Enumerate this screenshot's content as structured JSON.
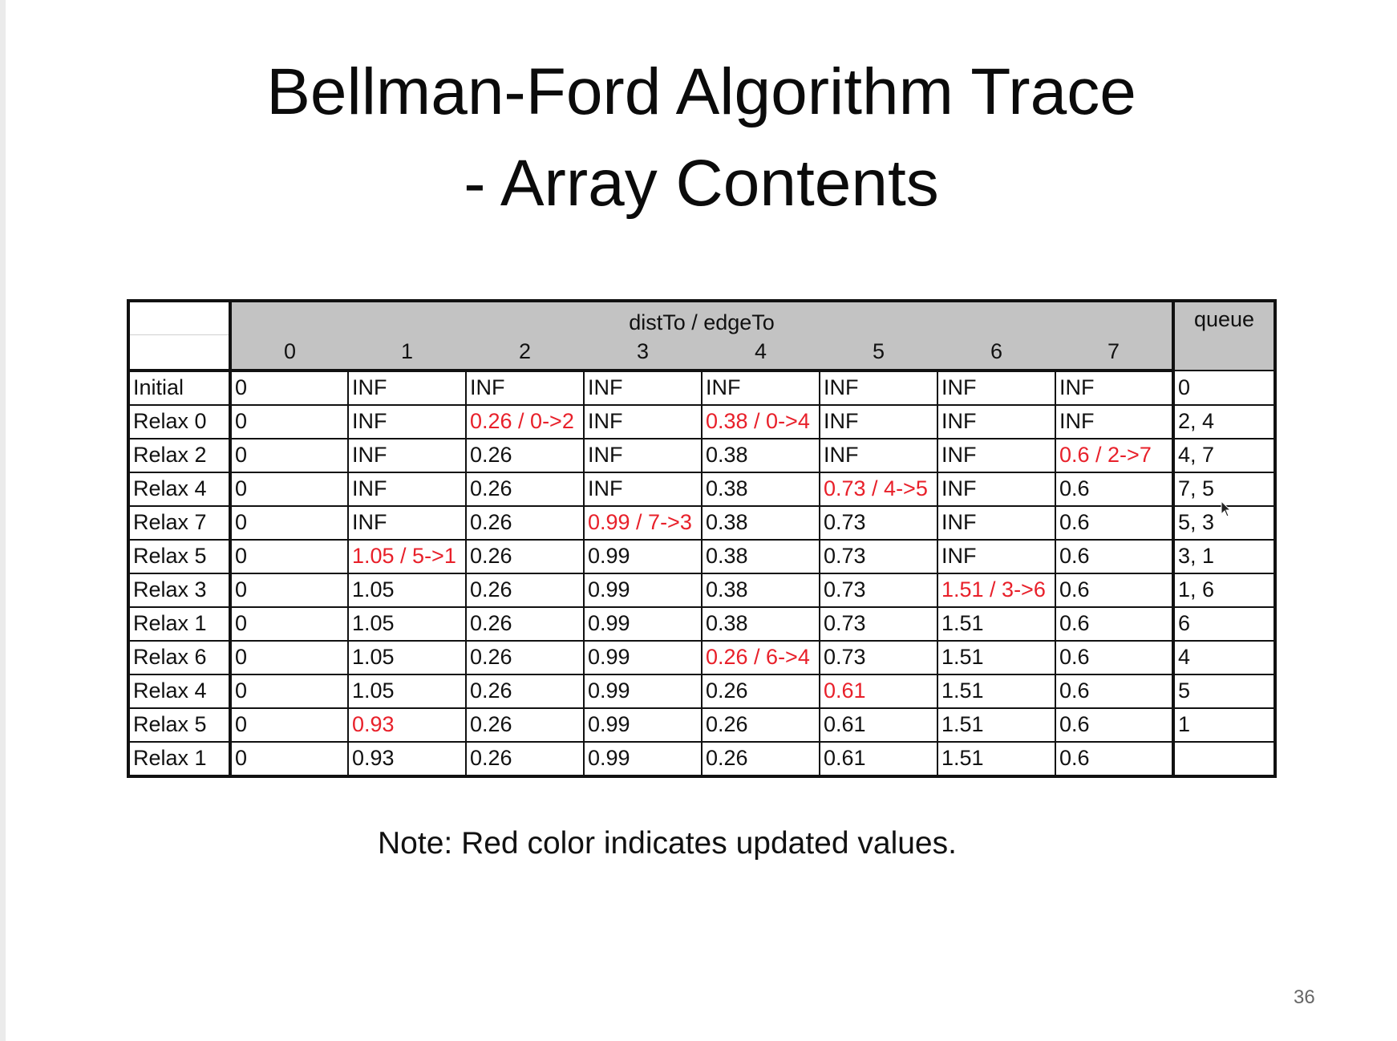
{
  "slide": {
    "title_line1": "Bellman-Ford Algorithm Trace",
    "title_line2": "- Array Contents",
    "note": "Note: Red color indicates updated values.",
    "page_number": "36",
    "highlight_color": "#e8202a"
  },
  "table": {
    "group_header": "distTo / edgeTo",
    "queue_header": "queue",
    "columns": [
      "0",
      "1",
      "2",
      "3",
      "4",
      "5",
      "6",
      "7"
    ],
    "rows": [
      {
        "label": "Initial",
        "cells": [
          {
            "v": "0"
          },
          {
            "v": "INF"
          },
          {
            "v": "INF"
          },
          {
            "v": "INF"
          },
          {
            "v": "INF"
          },
          {
            "v": "INF"
          },
          {
            "v": "INF"
          },
          {
            "v": "INF"
          }
        ],
        "queue": "0"
      },
      {
        "label": "Relax 0",
        "cells": [
          {
            "v": "0"
          },
          {
            "v": "INF"
          },
          {
            "v": "0.26 / 0->2",
            "updated": true
          },
          {
            "v": "INF"
          },
          {
            "v": "0.38 / 0->4",
            "updated": true
          },
          {
            "v": "INF"
          },
          {
            "v": "INF"
          },
          {
            "v": "INF"
          }
        ],
        "queue": "2, 4"
      },
      {
        "label": "Relax 2",
        "cells": [
          {
            "v": "0"
          },
          {
            "v": "INF"
          },
          {
            "v": "0.26"
          },
          {
            "v": "INF"
          },
          {
            "v": "0.38"
          },
          {
            "v": "INF"
          },
          {
            "v": "INF"
          },
          {
            "v": "0.6 / 2->7",
            "updated": true
          }
        ],
        "queue": "4, 7"
      },
      {
        "label": "Relax 4",
        "cells": [
          {
            "v": "0"
          },
          {
            "v": "INF"
          },
          {
            "v": "0.26"
          },
          {
            "v": "INF"
          },
          {
            "v": "0.38"
          },
          {
            "v": "0.73 / 4->5",
            "updated": true
          },
          {
            "v": "INF"
          },
          {
            "v": "0.6"
          }
        ],
        "queue": "7, 5"
      },
      {
        "label": "Relax 7",
        "cells": [
          {
            "v": "0"
          },
          {
            "v": "INF"
          },
          {
            "v": "0.26"
          },
          {
            "v": "0.99 / 7->3",
            "updated": true
          },
          {
            "v": "0.38"
          },
          {
            "v": "0.73"
          },
          {
            "v": "INF"
          },
          {
            "v": "0.6"
          }
        ],
        "queue": "5, 3"
      },
      {
        "label": "Relax 5",
        "cells": [
          {
            "v": "0"
          },
          {
            "v": "1.05 / 5->1",
            "updated": true
          },
          {
            "v": "0.26"
          },
          {
            "v": "0.99"
          },
          {
            "v": "0.38"
          },
          {
            "v": "0.73"
          },
          {
            "v": "INF"
          },
          {
            "v": "0.6"
          }
        ],
        "queue": "3, 1"
      },
      {
        "label": "Relax 3",
        "cells": [
          {
            "v": "0"
          },
          {
            "v": "1.05"
          },
          {
            "v": "0.26"
          },
          {
            "v": "0.99"
          },
          {
            "v": "0.38"
          },
          {
            "v": "0.73"
          },
          {
            "v": "1.51 / 3->6",
            "updated": true
          },
          {
            "v": "0.6"
          }
        ],
        "queue": "1, 6"
      },
      {
        "label": "Relax 1",
        "cells": [
          {
            "v": "0"
          },
          {
            "v": "1.05"
          },
          {
            "v": "0.26"
          },
          {
            "v": "0.99"
          },
          {
            "v": "0.38"
          },
          {
            "v": "0.73"
          },
          {
            "v": "1.51"
          },
          {
            "v": "0.6"
          }
        ],
        "queue": "6"
      },
      {
        "label": "Relax 6",
        "cells": [
          {
            "v": "0"
          },
          {
            "v": "1.05"
          },
          {
            "v": "0.26"
          },
          {
            "v": "0.99"
          },
          {
            "v": "0.26 / 6->4",
            "updated": true
          },
          {
            "v": "0.73"
          },
          {
            "v": "1.51"
          },
          {
            "v": "0.6"
          }
        ],
        "queue": "4"
      },
      {
        "label": "Relax 4",
        "cells": [
          {
            "v": "0"
          },
          {
            "v": "1.05"
          },
          {
            "v": "0.26"
          },
          {
            "v": "0.99"
          },
          {
            "v": "0.26"
          },
          {
            "v": "0.61",
            "updated": true
          },
          {
            "v": "1.51"
          },
          {
            "v": "0.6"
          }
        ],
        "queue": "5"
      },
      {
        "label": "Relax 5",
        "cells": [
          {
            "v": "0"
          },
          {
            "v": "0.93",
            "updated": true
          },
          {
            "v": "0.26"
          },
          {
            "v": "0.99"
          },
          {
            "v": "0.26"
          },
          {
            "v": "0.61"
          },
          {
            "v": "1.51"
          },
          {
            "v": "0.6"
          }
        ],
        "queue": "1"
      },
      {
        "label": "Relax 1",
        "cells": [
          {
            "v": "0"
          },
          {
            "v": "0.93"
          },
          {
            "v": "0.26"
          },
          {
            "v": "0.99"
          },
          {
            "v": "0.26"
          },
          {
            "v": "0.61"
          },
          {
            "v": "1.51"
          },
          {
            "v": "0.6"
          }
        ],
        "queue": ""
      }
    ]
  }
}
